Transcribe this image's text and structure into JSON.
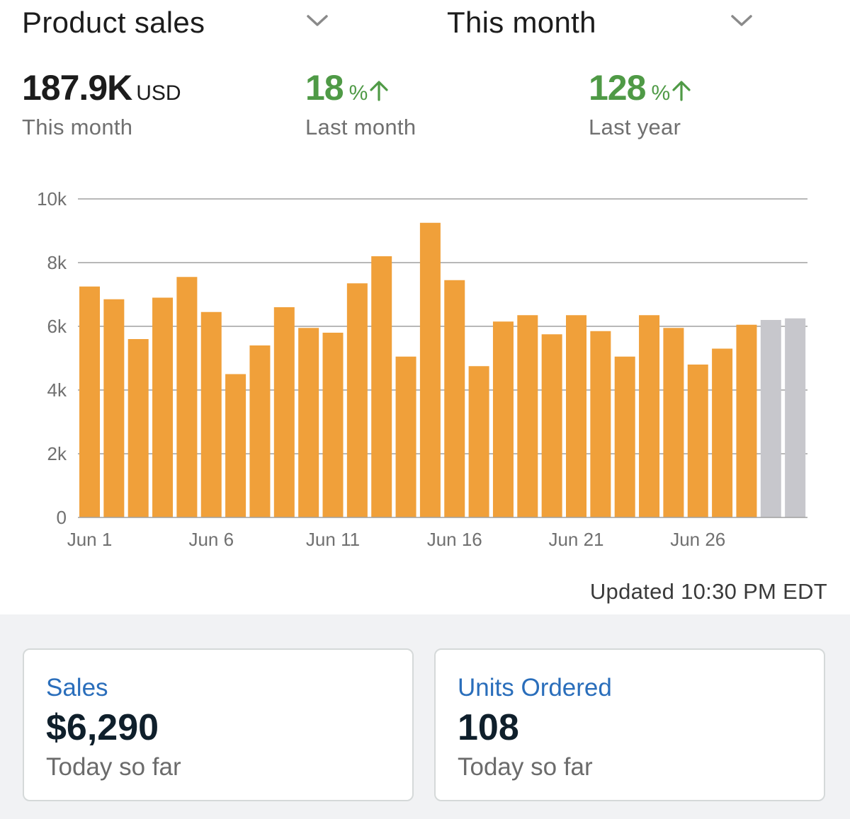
{
  "header": {
    "metric_selector": "Product sales",
    "period_selector": "This month",
    "chevron_icon": "chevron-down-icon"
  },
  "stats": {
    "total": {
      "value": "187.9K",
      "unit": "USD",
      "label": "This month"
    },
    "vs_last_month": {
      "value": "18",
      "unit": "%",
      "label": "Last month",
      "direction": "up",
      "icon": "arrow-up-icon"
    },
    "vs_last_year": {
      "value": "128",
      "unit": "%",
      "label": "Last year",
      "direction": "up",
      "icon": "arrow-up-icon"
    }
  },
  "colors": {
    "bar": "#f0a03a",
    "bar_projected": "#c7c7cc",
    "positive": "#4f9a46",
    "grid": "#a0a0a0",
    "link": "#2a6ebb"
  },
  "chart_data": {
    "type": "bar",
    "title": "",
    "xlabel": "",
    "ylabel": "",
    "ylim": [
      0,
      10000
    ],
    "yticks": [
      0,
      2000,
      4000,
      6000,
      8000,
      10000
    ],
    "ytick_labels": [
      "0",
      "2k",
      "4k",
      "6k",
      "8k",
      "10k"
    ],
    "xtick_labels": [
      {
        "index": 0,
        "label": "Jun 1"
      },
      {
        "index": 5,
        "label": "Jun 6"
      },
      {
        "index": 10,
        "label": "Jun 11"
      },
      {
        "index": 15,
        "label": "Jun 16"
      },
      {
        "index": 20,
        "label": "Jun 21"
      },
      {
        "index": 25,
        "label": "Jun 26"
      }
    ],
    "categories": [
      "Jun 1",
      "Jun 2",
      "Jun 3",
      "Jun 4",
      "Jun 5",
      "Jun 6",
      "Jun 7",
      "Jun 8",
      "Jun 9",
      "Jun 10",
      "Jun 11",
      "Jun 12",
      "Jun 13",
      "Jun 14",
      "Jun 15",
      "Jun 16",
      "Jun 17",
      "Jun 18",
      "Jun 19",
      "Jun 20",
      "Jun 21",
      "Jun 22",
      "Jun 23",
      "Jun 24",
      "Jun 25",
      "Jun 26",
      "Jun 27",
      "Jun 28",
      "Jun 29",
      "Jun 30"
    ],
    "series": [
      {
        "name": "Product sales",
        "values": [
          7250,
          6850,
          5600,
          6900,
          7550,
          6450,
          4500,
          5400,
          6600,
          5950,
          5800,
          7350,
          8200,
          5050,
          9250,
          7450,
          4750,
          6150,
          6350,
          5750,
          6350,
          5850,
          5050,
          6350,
          5950,
          4800,
          5300,
          6050,
          6200,
          6250
        ],
        "projected": [
          false,
          false,
          false,
          false,
          false,
          false,
          false,
          false,
          false,
          false,
          false,
          false,
          false,
          false,
          false,
          false,
          false,
          false,
          false,
          false,
          false,
          false,
          false,
          false,
          false,
          false,
          false,
          false,
          true,
          true
        ]
      }
    ],
    "grid": true
  },
  "updated_text": "Updated 10:30 PM EDT",
  "cards": [
    {
      "title": "Sales",
      "value": "$6,290",
      "subtitle": "Today so far"
    },
    {
      "title": "Units Ordered",
      "value": "108",
      "subtitle": "Today so far"
    }
  ]
}
